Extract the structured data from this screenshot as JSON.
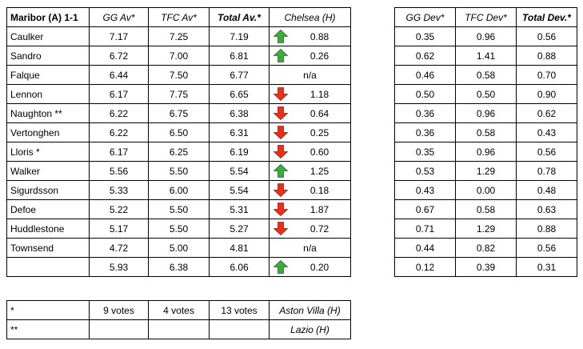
{
  "main": {
    "headers": [
      "Maribor (A) 1-1",
      "GG Av*",
      "TFC Av*",
      "Total Av.*",
      "Chelsea (H)"
    ],
    "rows": [
      {
        "name": "Caulker",
        "gg": "7.17",
        "tfc": "7.25",
        "total": "7.19",
        "dir": "up",
        "chg": "0.88"
      },
      {
        "name": "Sandro",
        "gg": "6.72",
        "tfc": "7.00",
        "total": "6.81",
        "dir": "up",
        "chg": "0.26"
      },
      {
        "name": "Falque",
        "gg": "6.44",
        "tfc": "7.50",
        "total": "6.77",
        "dir": "none",
        "chg": "n/a"
      },
      {
        "name": "Lennon",
        "gg": "6.17",
        "tfc": "7.75",
        "total": "6.65",
        "dir": "down",
        "chg": "1.18"
      },
      {
        "name": "Naughton **",
        "gg": "6.22",
        "tfc": "6.75",
        "total": "6.38",
        "dir": "down",
        "chg": "0.64"
      },
      {
        "name": "Vertonghen",
        "gg": "6.22",
        "tfc": "6.50",
        "total": "6.31",
        "dir": "down",
        "chg": "0.25"
      },
      {
        "name": "Lloris *",
        "gg": "6.17",
        "tfc": "6.25",
        "total": "6.19",
        "dir": "down",
        "chg": "0.60"
      },
      {
        "name": "Walker",
        "gg": "5.56",
        "tfc": "5.50",
        "total": "5.54",
        "dir": "up",
        "chg": "1.25"
      },
      {
        "name": "Sigurdsson",
        "gg": "5.33",
        "tfc": "6.00",
        "total": "5.54",
        "dir": "down",
        "chg": "0.18"
      },
      {
        "name": "Defoe",
        "gg": "5.22",
        "tfc": "5.50",
        "total": "5.31",
        "dir": "down",
        "chg": "1.87"
      },
      {
        "name": "Huddlestone",
        "gg": "5.17",
        "tfc": "5.50",
        "total": "5.27",
        "dir": "down",
        "chg": "0.72"
      },
      {
        "name": "Townsend",
        "gg": "4.72",
        "tfc": "5.00",
        "total": "4.81",
        "dir": "none",
        "chg": "n/a"
      },
      {
        "name": "",
        "gg": "5.93",
        "tfc": "6.38",
        "total": "6.06",
        "dir": "up",
        "chg": "0.20"
      }
    ]
  },
  "dev": {
    "headers": [
      "GG Dev*",
      "TFC Dev*",
      "Total Dev.*"
    ],
    "rows": [
      [
        "0.35",
        "0.96",
        "0.56"
      ],
      [
        "0.62",
        "1.41",
        "0.88"
      ],
      [
        "0.46",
        "0.58",
        "0.70"
      ],
      [
        "0.50",
        "0.50",
        "0.90"
      ],
      [
        "0.36",
        "0.96",
        "0.62"
      ],
      [
        "0.36",
        "0.58",
        "0.43"
      ],
      [
        "0.35",
        "0.96",
        "0.56"
      ],
      [
        "0.53",
        "1.29",
        "0.78"
      ],
      [
        "0.43",
        "0.00",
        "0.48"
      ],
      [
        "0.67",
        "0.58",
        "0.63"
      ],
      [
        "0.71",
        "1.29",
        "0.88"
      ],
      [
        "0.44",
        "0.82",
        "0.56"
      ],
      [
        "0.12",
        "0.39",
        "0.31"
      ]
    ]
  },
  "notes": {
    "rows": [
      {
        "sym": "*",
        "gg": "9 votes",
        "tfc": "4 votes",
        "total": "13 votes",
        "match": "Aston Villa (H)"
      },
      {
        "sym": "**",
        "gg": "",
        "tfc": "",
        "total": "",
        "match": "Lazio (H)"
      }
    ]
  },
  "colors": {
    "up": "#3fa93f",
    "down": "#e8301c"
  }
}
